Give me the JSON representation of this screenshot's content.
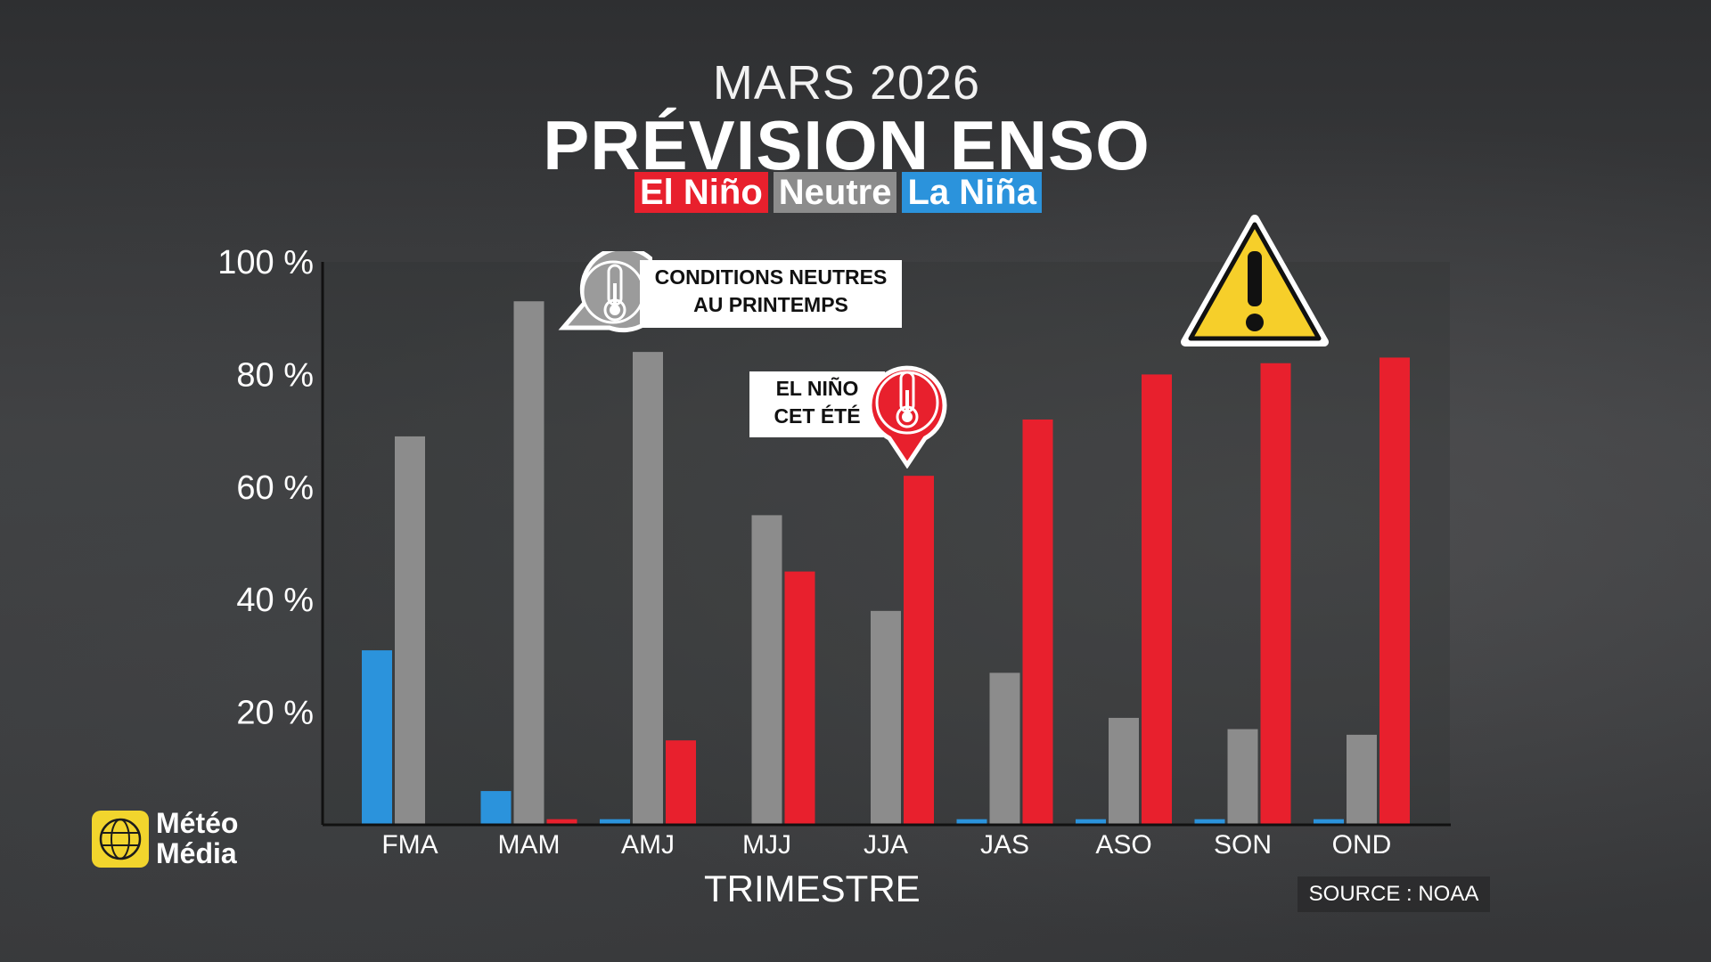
{
  "header": {
    "date": "MARS 2026",
    "title": "PRÉVISION ENSO"
  },
  "legend": [
    {
      "label": "El Niño",
      "color": "#e8202d"
    },
    {
      "label": "Neutre",
      "color": "#8c8c8c"
    },
    {
      "label": "La Niña",
      "color": "#2b93dc"
    }
  ],
  "callouts": {
    "neutral": {
      "line1": "CONDITIONS NEUTRES",
      "line2": "AU PRINTEMPS",
      "icon": "thermometer-icon"
    },
    "elnino": {
      "line1": "EL NIÑO",
      "line2": "CET ÉTÉ",
      "icon": "thermometer-icon"
    },
    "warning_icon": "warning-icon"
  },
  "source": "SOURCE : NOAA",
  "brand": {
    "line1": "Météo",
    "line2": "Média"
  },
  "chart_data": {
    "type": "bar",
    "xlabel": "TRIMESTRE",
    "ylabel": "",
    "ylim": [
      0,
      100
    ],
    "yticks": [
      20,
      40,
      60,
      80,
      100
    ],
    "ytick_labels": [
      "20 %",
      "40 %",
      "60 %",
      "80 %",
      "100 %"
    ],
    "categories": [
      "FMA",
      "MAM",
      "AMJ",
      "MJJ",
      "JJA",
      "JAS",
      "ASO",
      "SON",
      "OND"
    ],
    "series": [
      {
        "name": "La Niña",
        "color": "#2b93dc",
        "values": [
          31,
          6,
          1,
          0,
          0,
          1,
          1,
          1,
          1
        ]
      },
      {
        "name": "Neutre",
        "color": "#8c8c8c",
        "values": [
          69,
          93,
          84,
          55,
          38,
          27,
          19,
          17,
          16
        ]
      },
      {
        "name": "El Niño",
        "color": "#e8202d",
        "values": [
          0,
          1,
          15,
          45,
          62,
          72,
          80,
          82,
          83
        ]
      }
    ],
    "grid": false
  }
}
